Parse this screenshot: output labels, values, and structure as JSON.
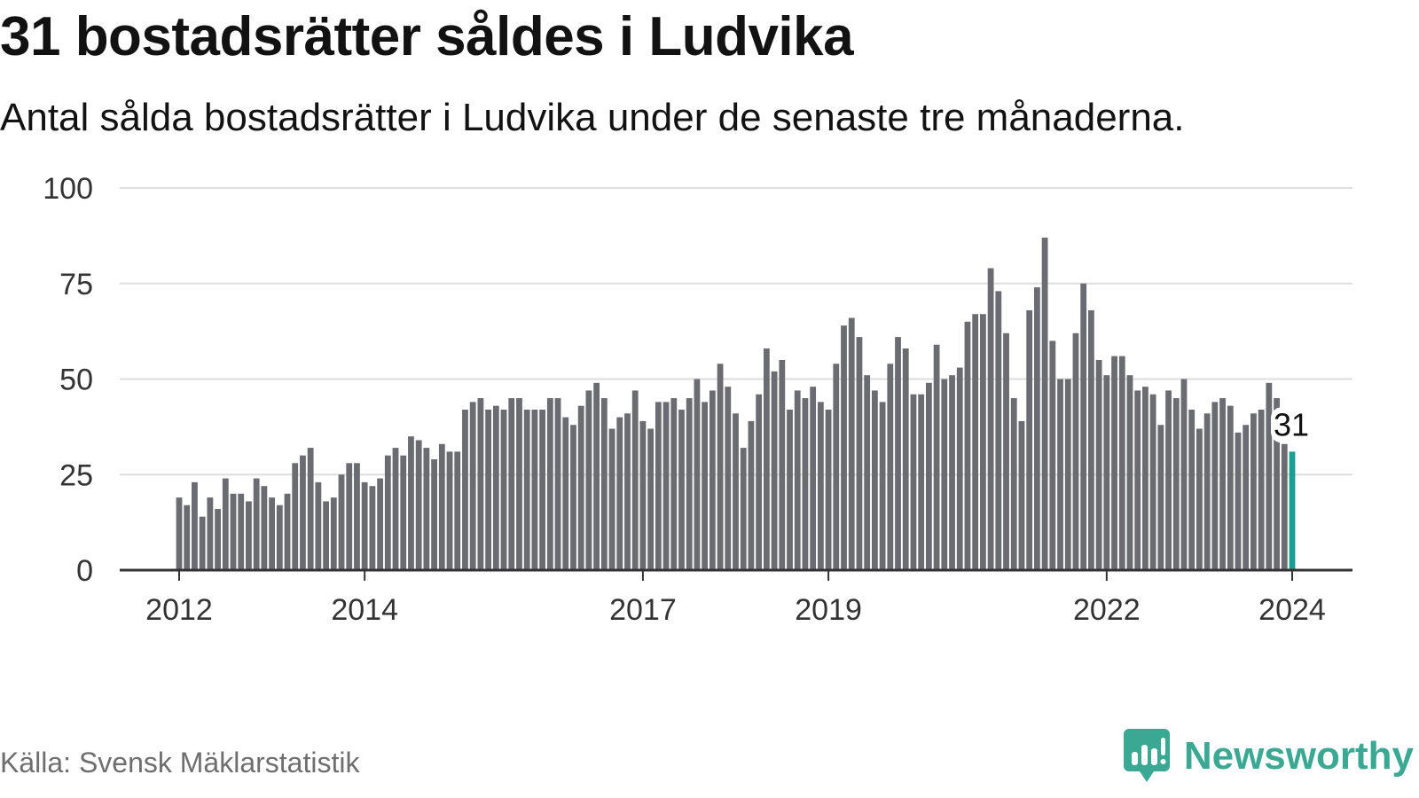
{
  "title": "31 bostadsrätter såldes i Ludvika",
  "subtitle": "Antal sålda bostadsrätter i Ludvika under de senaste tre månaderna.",
  "source": "Källa: Svensk Mäklarstatistik",
  "brand": {
    "name": "Newsworthy"
  },
  "colors": {
    "bar": "#6b6b72",
    "highlight": "#1a9e92",
    "grid": "#dddddd",
    "axis": "#333333",
    "text": "#333333",
    "brand": "#3aa892"
  },
  "chart_data": {
    "type": "bar",
    "title": "31 bostadsrätter såldes i Ludvika",
    "xlabel": "",
    "ylabel": "",
    "ylim": [
      0,
      100
    ],
    "yticks": [
      0,
      25,
      50,
      75,
      100
    ],
    "x_tick_labels": [
      {
        "label": "2012",
        "index": 0
      },
      {
        "label": "2014",
        "index": 24
      },
      {
        "label": "2017",
        "index": 60
      },
      {
        "label": "2019",
        "index": 84
      },
      {
        "label": "2022",
        "index": 120
      },
      {
        "label": "2024",
        "index": 144
      }
    ],
    "start": "2012-01",
    "end": "2024-01",
    "values": [
      19,
      17,
      23,
      14,
      19,
      16,
      24,
      20,
      20,
      18,
      24,
      22,
      19,
      17,
      20,
      28,
      30,
      32,
      23,
      18,
      19,
      25,
      28,
      28,
      23,
      22,
      24,
      30,
      32,
      30,
      35,
      34,
      32,
      29,
      33,
      31,
      31,
      42,
      44,
      45,
      42,
      43,
      42,
      45,
      45,
      42,
      42,
      42,
      45,
      45,
      40,
      38,
      43,
      47,
      49,
      45,
      37,
      40,
      41,
      47,
      39,
      37,
      44,
      44,
      45,
      42,
      45,
      50,
      44,
      47,
      54,
      48,
      41,
      32,
      39,
      46,
      58,
      52,
      55,
      42,
      47,
      45,
      48,
      44,
      42,
      54,
      64,
      66,
      61,
      51,
      47,
      44,
      54,
      61,
      58,
      46,
      46,
      49,
      59,
      50,
      51,
      53,
      65,
      67,
      67,
      79,
      73,
      62,
      45,
      39,
      68,
      74,
      87,
      60,
      50,
      50,
      62,
      75,
      68,
      55,
      51,
      56,
      56,
      51,
      47,
      48,
      46,
      38,
      47,
      45,
      50,
      42,
      37,
      41,
      44,
      45,
      43,
      36,
      38,
      41,
      42,
      49,
      45,
      33,
      31
    ],
    "highlight_index": 144,
    "highlight_label": "31"
  }
}
